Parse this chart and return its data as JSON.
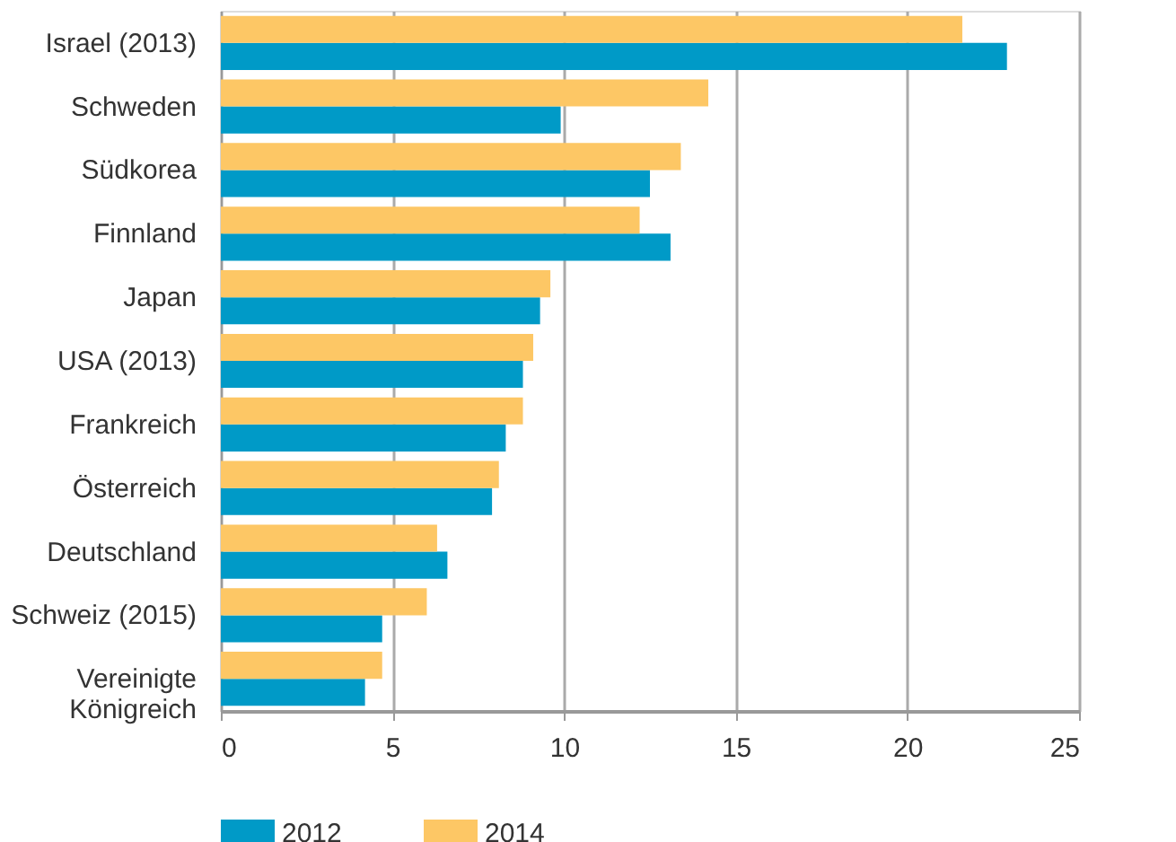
{
  "chart_data": {
    "type": "bar",
    "orientation": "horizontal",
    "categories": [
      "Israel (2013)",
      "Schweden",
      "Südkorea",
      "Finnland",
      "Japan",
      "USA (2013)",
      "Frankreich",
      "Österreich",
      "Deutschland",
      "Schweiz (2015)",
      "Vereinigte\nKönigreich"
    ],
    "series": [
      {
        "name": "2012",
        "color": "#009ac7",
        "values": [
          22.9,
          9.9,
          12.5,
          13.1,
          9.3,
          8.8,
          8.3,
          7.9,
          6.6,
          4.7,
          4.2
        ]
      },
      {
        "name": "2014",
        "color": "#fdc765",
        "values": [
          21.6,
          14.2,
          13.4,
          12.2,
          9.6,
          9.1,
          8.8,
          8.1,
          6.3,
          6.0,
          4.7
        ]
      }
    ],
    "xlim": [
      0,
      25
    ],
    "xticks": [
      0,
      5,
      10,
      15,
      20,
      25
    ],
    "grid": "x",
    "legend": "bottom"
  }
}
